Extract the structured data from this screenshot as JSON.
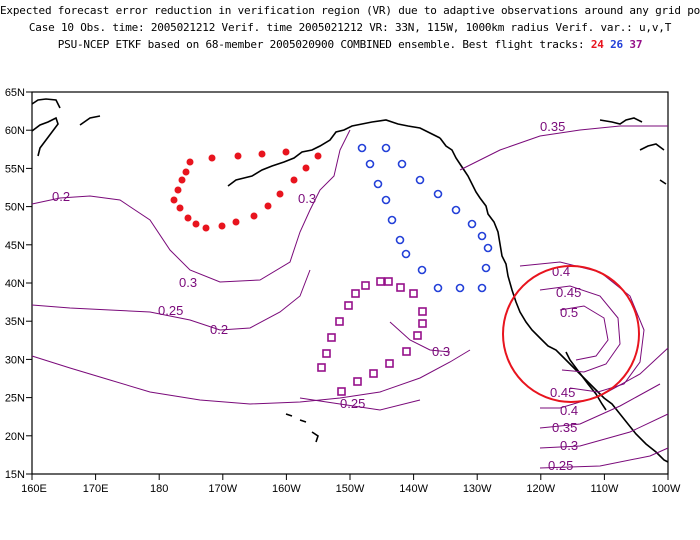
{
  "header": {
    "line1": "Expected forecast error reduction in verification region (VR) due to adaptive observations around any grid point.",
    "line2": "Case 10  Obs. time: 2005021212  Verif. time 2005021212  VR: 33N, 115W, 1000km radius  Verif. var.: u,v,T",
    "line3_prefix": "PSU-NCEP ETKF based on 68-member 2005020900 COMBINED ensemble.  Best flight tracks: ",
    "track_24": "24",
    "track_26": "26",
    "track_37": "37"
  },
  "map": {
    "lon_labels": [
      "160E",
      "170E",
      "180",
      "170W",
      "160W",
      "150W",
      "140W",
      "130W",
      "120W",
      "110W",
      "100W"
    ],
    "lat_labels": [
      "65N",
      "60N",
      "55N",
      "50N",
      "45N",
      "40N",
      "35N",
      "30N",
      "25N",
      "20N",
      "15N"
    ],
    "contour_labels": [
      "0.2",
      "0.3",
      "0.25",
      "0.2",
      "0.3",
      "0.3",
      "0.25",
      "0.35",
      "0.4",
      "0.45",
      "0.5",
      "0.45",
      "0.4",
      "0.35",
      "0.3",
      "0.25"
    ],
    "contour_color": "#7a0a7a",
    "track_colors": {
      "24": "#e8141e",
      "26": "#2340d8",
      "37": "#96108a"
    },
    "vr_circle_color": "#e8141e"
  }
}
